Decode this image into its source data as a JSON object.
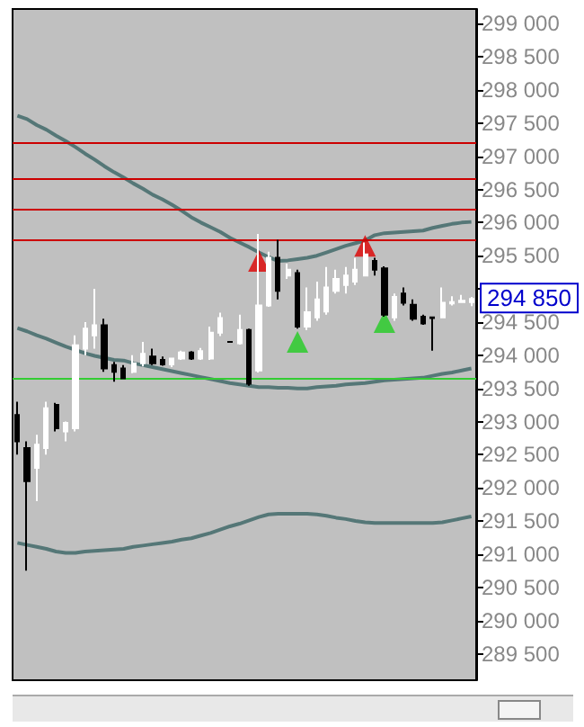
{
  "chart_data": {
    "type": "candlestick",
    "categories": [
      null,
      null,
      null,
      null,
      null,
      null,
      null,
      null,
      null,
      null,
      null,
      null,
      null,
      null,
      null,
      null,
      null,
      null,
      null,
      null,
      null,
      null,
      null,
      null,
      null,
      null,
      null,
      null,
      null,
      null,
      null,
      null,
      null,
      null,
      null,
      null,
      null,
      null,
      null,
      null,
      null,
      null,
      null,
      null,
      null,
      null,
      null,
      null
    ],
    "series": [
      {
        "type": "line",
        "color": "#557777",
        "values": [
          297610,
          297560,
          297470,
          297400,
          297310,
          297230,
          297140,
          297040,
          296950,
          296850,
          296760,
          296680,
          296590,
          296510,
          296420,
          296350,
          296270,
          296180,
          296080,
          296000,
          295930,
          295860,
          295770,
          295700,
          295630,
          295550,
          295480,
          295420,
          295430,
          295450,
          295470,
          295500,
          295550,
          295600,
          295650,
          295690,
          295730,
          295810,
          295840,
          295850,
          295860,
          295870,
          295880,
          295920,
          295950,
          295980,
          296000,
          296010
        ]
      },
      {
        "type": "line",
        "color": "#557777",
        "values": [
          294410,
          294360,
          294300,
          294250,
          294190,
          294130,
          294080,
          294030,
          293990,
          293960,
          293930,
          293920,
          293880,
          293850,
          293820,
          293790,
          293760,
          293730,
          293700,
          293670,
          293640,
          293610,
          293580,
          293560,
          293540,
          293520,
          293520,
          293510,
          293510,
          293500,
          293500,
          293520,
          293530,
          293540,
          293560,
          293570,
          293580,
          293600,
          293620,
          293630,
          293640,
          293650,
          293660,
          293690,
          293720,
          293740,
          293770,
          293800
        ]
      },
      {
        "type": "line",
        "color": "#557777",
        "values": [
          291170,
          291140,
          291110,
          291080,
          291040,
          291020,
          291020,
          291040,
          291050,
          291060,
          291070,
          291080,
          291110,
          291130,
          291150,
          291170,
          291190,
          291220,
          291240,
          291280,
          291320,
          291370,
          291420,
          291460,
          291510,
          291560,
          291600,
          291610,
          291610,
          291610,
          291610,
          291600,
          291580,
          291550,
          291530,
          291500,
          291480,
          291470,
          291470,
          291470,
          291470,
          291470,
          291470,
          291470,
          291480,
          291510,
          291540,
          291570
        ]
      },
      {
        "colors": [
          "#000000",
          "#000000",
          "#ffffff",
          "#ffffff",
          "#000000",
          "#ffffff",
          "#ffffff",
          "#ffffff",
          "#ffffff",
          "#000000",
          "#000000",
          "#000000",
          "#ffffff",
          "#ffffff",
          "#000000",
          "#000000",
          "#ffffff",
          "#ffffff",
          "#000000",
          "#ffffff",
          "#ffffff",
          "#ffffff",
          "#000000",
          "#ffffff",
          "#000000",
          "#ffffff",
          "#ffffff",
          "#000000",
          "#ffffff",
          "#000000",
          "#ffffff",
          "#ffffff",
          "#ffffff",
          "#ffffff",
          "#ffffff",
          "#ffffff",
          "#ffffff",
          "#000000",
          "#000000",
          "#ffffff",
          "#000000",
          "#000000",
          "#000000",
          "#000000",
          "#ffffff",
          "#ffffff",
          "#ffffff",
          "#ffffff"
        ],
        "ohlc": [
          [
            293100,
            293300,
            292500,
            292700
          ],
          [
            292600,
            292700,
            290750,
            292100
          ],
          [
            292300,
            292800,
            291800,
            292650
          ],
          [
            292600,
            293300,
            292500,
            293200
          ],
          [
            293250,
            293280,
            292850,
            292900
          ],
          [
            292850,
            293000,
            292700,
            292980
          ],
          [
            292900,
            294300,
            292850,
            294150
          ],
          [
            294100,
            294500,
            294000,
            294400
          ],
          [
            294300,
            295000,
            294100,
            294450
          ],
          [
            294450,
            294550,
            293750,
            293800
          ],
          [
            293850,
            293900,
            293600,
            293750
          ],
          [
            293800,
            293850,
            293650,
            293650
          ],
          [
            293750,
            294000,
            293730,
            293880
          ],
          [
            293880,
            294200,
            293830,
            294020
          ],
          [
            293980,
            294100,
            293850,
            293880
          ],
          [
            293930,
            293980,
            293840,
            293860
          ],
          [
            293860,
            293960,
            293820,
            293950
          ],
          [
            293950,
            294070,
            293930,
            294040
          ],
          [
            294040,
            294060,
            293930,
            293950
          ],
          [
            293950,
            294110,
            293930,
            294060
          ],
          [
            293950,
            294430,
            293930,
            294340
          ],
          [
            294340,
            294640,
            294290,
            294560
          ],
          [
            294200,
            294210,
            294190,
            294200
          ],
          [
            294180,
            294610,
            294160,
            294380
          ],
          [
            294380,
            294400,
            293540,
            293570
          ],
          [
            293770,
            295830,
            293740,
            294750
          ],
          [
            294750,
            295560,
            294730,
            295470
          ],
          [
            295470,
            295740,
            294840,
            294970
          ],
          [
            295200,
            295380,
            295150,
            295290
          ],
          [
            295240,
            295290,
            294400,
            294430
          ],
          [
            294430,
            295020,
            294380,
            294650
          ],
          [
            294570,
            295110,
            294520,
            294840
          ],
          [
            294660,
            295330,
            294610,
            295020
          ],
          [
            294970,
            295290,
            294930,
            295150
          ],
          [
            295060,
            295330,
            294930,
            295200
          ],
          [
            295110,
            295470,
            295060,
            295290
          ],
          [
            295200,
            295700,
            295200,
            295520
          ],
          [
            295420,
            295470,
            295200,
            295290
          ],
          [
            295310,
            295340,
            294580,
            294610
          ],
          [
            294570,
            294930,
            294520,
            294880
          ],
          [
            294930,
            295020,
            294750,
            294790
          ],
          [
            294760,
            294840,
            294520,
            294550
          ],
          [
            294580,
            294610,
            294460,
            294480
          ],
          [
            294570,
            294570,
            294070,
            294560
          ],
          [
            294570,
            295020,
            294570,
            294790
          ],
          [
            294780,
            294890,
            294750,
            294800
          ],
          [
            294800,
            294910,
            294790,
            294820
          ],
          [
            294800,
            294880,
            294740,
            294850
          ]
        ]
      },
      {
        "type": "scatter",
        "color": "#dd0000",
        "marker": "triangle",
        "values": [
          null,
          null,
          null,
          null,
          null,
          null,
          null,
          null,
          null,
          null,
          null,
          null,
          null,
          null,
          null,
          null,
          null,
          null,
          null,
          null,
          null,
          null,
          null,
          null,
          null,
          295420,
          null,
          null,
          null,
          null,
          null,
          null,
          null,
          null,
          null,
          null,
          295650,
          null,
          null,
          null,
          null,
          null,
          null,
          null,
          null,
          null,
          null,
          null
        ]
      },
      {
        "type": "scatter",
        "color": "#22cc22",
        "marker": "triangle",
        "values": [
          null,
          null,
          null,
          null,
          null,
          null,
          null,
          null,
          null,
          null,
          null,
          null,
          null,
          null,
          null,
          null,
          null,
          null,
          null,
          null,
          null,
          null,
          null,
          null,
          null,
          null,
          null,
          null,
          null,
          294200,
          null,
          null,
          null,
          null,
          null,
          null,
          null,
          null,
          294500,
          null,
          null,
          null,
          null,
          null,
          null,
          null,
          null,
          null
        ]
      }
    ],
    "ylim": [
      289100,
      299220
    ],
    "yticks": [
      {
        "value": 289500,
        "label": "289 500"
      },
      {
        "value": 290000,
        "label": "290 000"
      },
      {
        "value": 290500,
        "label": "290 500"
      },
      {
        "value": 291000,
        "label": "291 000"
      },
      {
        "value": 291500,
        "label": "291 500"
      },
      {
        "value": 292000,
        "label": "292 000"
      },
      {
        "value": 292500,
        "label": "292 500"
      },
      {
        "value": 293000,
        "label": "293 000"
      },
      {
        "value": 293500,
        "label": "293 500"
      },
      {
        "value": 294000,
        "label": "294 000"
      },
      {
        "value": 294500,
        "label": "294 500"
      },
      {
        "value": 295000,
        "label": null
      },
      {
        "value": 295500,
        "label": "295 500"
      },
      {
        "value": 296000,
        "label": "296 000"
      },
      {
        "value": 296500,
        "label": "296 500"
      },
      {
        "value": 297000,
        "label": "297 000"
      },
      {
        "value": 297500,
        "label": "297 500"
      },
      {
        "value": 298000,
        "label": "298 000"
      },
      {
        "value": 298500,
        "label": "298 500"
      },
      {
        "value": 299000,
        "label": "299 000"
      }
    ],
    "ref_lines": [
      {
        "axis": "y",
        "value": 297200,
        "color": "#cc0000"
      },
      {
        "axis": "y",
        "value": 296650,
        "color": "#cc0000"
      },
      {
        "axis": "y",
        "value": 296200,
        "color": "#cc0000"
      },
      {
        "axis": "y",
        "value": 295750,
        "color": "#cc0000"
      },
      {
        "axis": "y",
        "value": 293650,
        "color": "#33cc33"
      }
    ],
    "annotations": [
      "294 850"
    ],
    "grid": false,
    "tick_labels": "y"
  }
}
